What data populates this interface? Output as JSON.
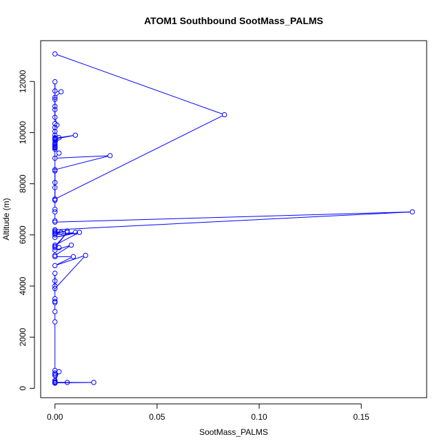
{
  "chart_data": {
    "type": "line",
    "title": "ATOM1 Southbound SootMass_PALMS",
    "xlabel": "SootMass_PALMS",
    "ylabel": "Altitude (m)",
    "xlim": [
      0,
      0.175
    ],
    "ylim": [
      150,
      13080
    ],
    "x_ticks": [
      0,
      0.05,
      0.1,
      0.15
    ],
    "x_tick_labels": [
      "0.00",
      "0.05",
      "0.10",
      "0.15"
    ],
    "y_ticks": [
      0,
      2000,
      4000,
      6000,
      8000,
      10000,
      12000
    ],
    "y_tick_labels": [
      "0",
      "2000",
      "4000",
      "6000",
      "8000",
      "10000",
      "12000"
    ],
    "grid": false,
    "legend": "none",
    "series_color": "#0000ff",
    "markers": "open-circle",
    "series": [
      {
        "x": [
          0.0,
          0.083,
          0.0,
          0.0,
          0.0,
          0.0,
          0.0,
          0.003,
          0.0,
          0.0,
          0.0,
          0.0,
          0.0,
          0.001,
          0.0,
          0.0,
          0.0,
          0.0,
          0.0,
          0.0,
          0.0,
          0.0,
          0.0,
          0.0,
          0.0,
          0.0,
          0.002,
          0.0,
          0.01,
          0.0,
          0.0,
          0.0,
          0.002,
          0.0,
          0.027,
          0.0,
          0.0,
          0.0,
          0.0,
          0.0,
          0.0,
          0.0,
          0.0,
          0.0,
          0.175,
          0.0,
          0.0,
          0.0,
          0.0,
          0.006,
          0.0,
          0.003,
          0.0,
          0.01,
          0.0,
          0.012,
          0.0,
          0.0,
          0.006,
          0.0,
          0.002,
          0.0,
          0.008,
          0.0,
          0.0,
          0.009,
          0.0,
          0.015,
          0.0,
          0.0,
          0.0,
          0.0,
          0.0,
          0.0,
          0.0,
          0.0,
          0.0,
          0.0,
          0.0,
          0.0,
          0.0,
          0.0,
          0.0,
          0.0,
          0.002,
          0.0,
          0.0,
          0.006,
          0.0,
          0.019,
          0.0,
          0.0
        ],
        "y": [
          13080,
          10700,
          7400,
          7350,
          10350,
          11990,
          11630,
          11600,
          11380,
          11300,
          11030,
          10900,
          10600,
          10300,
          10200,
          10050,
          9900,
          9800,
          9750,
          9700,
          9600,
          9550,
          9500,
          9450,
          9420,
          9400,
          9800,
          9780,
          9900,
          9750,
          9500,
          9350,
          9200,
          9000,
          9100,
          8550,
          8500,
          8050,
          7850,
          7400,
          7000,
          6900,
          6550,
          6500,
          6900,
          6200,
          6150,
          6100,
          6050,
          6150,
          6100,
          6100,
          6000,
          6100,
          5900,
          6100,
          5600,
          5500,
          6100,
          5550,
          5500,
          5400,
          5600,
          5200,
          5150,
          5150,
          4800,
          5200,
          3900,
          4500,
          4200,
          4000,
          3500,
          3400,
          3350,
          3000,
          2600,
          700,
          600,
          550,
          500,
          300,
          250,
          230,
          650,
          300,
          220,
          230,
          230,
          230,
          210,
          200
        ]
      }
    ]
  }
}
